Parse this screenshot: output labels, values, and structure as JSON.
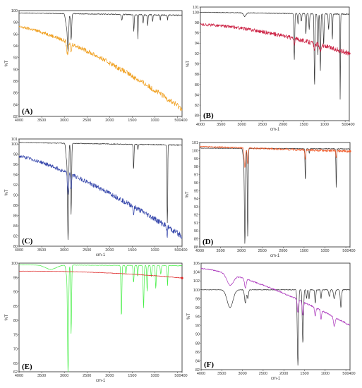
{
  "chart_data": [
    {
      "panel": "(A)",
      "type": "line",
      "x_ticks": [
        "4000",
        "3500",
        "3000",
        "2500",
        "2000",
        "1500",
        "1000",
        "500",
        "400"
      ],
      "y_ticks": [
        "100",
        "98",
        "96",
        "94",
        "92",
        "90",
        "88",
        "86",
        "84",
        "82"
      ],
      "ylabel": "%T",
      "xlabel": "",
      "xlim": [
        4000,
        400
      ],
      "ylim": [
        82,
        100
      ],
      "series": [
        {
          "color": "#333333",
          "baseline": 99.6,
          "drift": 99.2,
          "noise": 0.05,
          "peaks": [
            [
              2955,
              2,
              20
            ],
            [
              2918,
              6,
              14
            ],
            [
              2850,
              4.5,
              12
            ],
            [
              1730,
              1,
              10
            ],
            [
              1465,
              2.8,
              8
            ],
            [
              1375,
              4.2,
              6
            ],
            [
              1260,
              1.5,
              8
            ],
            [
              1160,
              1.8,
              8
            ],
            [
              1050,
              1.2,
              8
            ],
            [
              880,
              1,
              6
            ],
            [
              720,
              0.8,
              6
            ]
          ]
        },
        {
          "color": "#f0a020",
          "baseline": 97.2,
          "drift": 83.3,
          "noise": 0.25,
          "curve": 1.4,
          "peaks": [
            [
              2930,
              2,
              20
            ],
            [
              2850,
              1.5,
              12
            ]
          ]
        }
      ]
    },
    {
      "panel": "(B)",
      "type": "line",
      "x_ticks": [
        "4000",
        "3500",
        "3000",
        "2500",
        "2000",
        "1500",
        "1000",
        "500",
        "400"
      ],
      "y_ticks": [
        "101",
        "100",
        "98",
        "96",
        "94",
        "92",
        "90",
        "88",
        "86",
        "84",
        "82",
        "80"
      ],
      "ylabel": "%T",
      "xlabel": "cm-1",
      "xlim": [
        4000,
        400
      ],
      "ylim": [
        79,
        101
      ],
      "series": [
        {
          "color": "#333333",
          "baseline": 100.0,
          "drift": 99.6,
          "noise": 0.05,
          "peaks": [
            [
              2930,
              0.7,
              30
            ],
            [
              1730,
              9,
              10
            ],
            [
              1640,
              2,
              10
            ],
            [
              1560,
              1.5,
              10
            ],
            [
              1450,
              4,
              10
            ],
            [
              1370,
              3,
              10
            ],
            [
              1240,
              14,
              10
            ],
            [
              1160,
              8,
              10
            ],
            [
              1100,
              11,
              10
            ],
            [
              1020,
              6,
              10
            ],
            [
              900,
              3,
              10
            ],
            [
              810,
              5,
              8
            ],
            [
              620,
              17,
              6
            ]
          ]
        },
        {
          "color": "#cc2244",
          "baseline": 97.6,
          "drift": 92.0,
          "noise": 0.25,
          "curve": 1.6,
          "peaks": [
            [
              1730,
              1,
              15
            ],
            [
              1240,
              1.5,
              15
            ],
            [
              1100,
              1.2,
              15
            ]
          ]
        }
      ]
    },
    {
      "panel": "(C)",
      "type": "line",
      "x_ticks": [
        "4000",
        "3500",
        "3000",
        "2500",
        "2000",
        "1500",
        "1000",
        "500",
        "400"
      ],
      "y_ticks": [
        "101",
        "100",
        "98",
        "96",
        "94",
        "92",
        "90",
        "88",
        "86",
        "84",
        "82",
        "80"
      ],
      "ylabel": "%T",
      "xlabel": "cm-1",
      "xlim": [
        4000,
        400
      ],
      "ylim": [
        80,
        101
      ],
      "series": [
        {
          "color": "#333333",
          "baseline": 100.3,
          "drift": 99.8,
          "noise": 0.05,
          "peaks": [
            [
              2955,
              3,
              14
            ],
            [
              2918,
              19,
              12
            ],
            [
              2850,
              14,
              10
            ],
            [
              1470,
              5,
              8
            ],
            [
              1375,
              1,
              8
            ],
            [
              730,
              12,
              7
            ],
            [
              720,
              10,
              5
            ]
          ]
        },
        {
          "color": "#3344aa",
          "baseline": 97.6,
          "drift": 82.0,
          "noise": 0.3,
          "curve": 1.3,
          "peaks": [
            [
              2918,
              4,
              14
            ],
            [
              2850,
              3,
              10
            ],
            [
              1470,
              1.5,
              10
            ],
            [
              730,
              2,
              8
            ]
          ]
        }
      ]
    },
    {
      "panel": "(D)",
      "type": "line",
      "x_ticks": [
        "4000",
        "3500",
        "3000",
        "2500",
        "2000",
        "1500",
        "1000",
        "500",
        "400"
      ],
      "y_ticks": [
        "101",
        "100",
        "99",
        "98",
        "97",
        "96",
        "95",
        "94",
        "93",
        "92",
        "91",
        "90",
        "89",
        "88"
      ],
      "ylabel": "%T",
      "xlabel": "cm-1",
      "xlim": [
        4000,
        400
      ],
      "ylim": [
        88,
        101
      ],
      "series": [
        {
          "color": "#333333",
          "baseline": 100.3,
          "drift": 100.2,
          "noise": 0.03,
          "peaks": [
            [
              2955,
              1,
              14
            ],
            [
              2918,
              12,
              12
            ],
            [
              2850,
              11,
              10
            ],
            [
              1470,
              4,
              8
            ],
            [
              1375,
              0.6,
              8
            ],
            [
              730,
              5,
              7
            ]
          ]
        },
        {
          "color": "#f06030",
          "baseline": 100.5,
          "drift": 99.9,
          "noise": 0.08,
          "peaks": [
            [
              2918,
              2.5,
              16
            ],
            [
              2850,
              2,
              12
            ],
            [
              1470,
              1.2,
              10
            ],
            [
              730,
              1,
              8
            ]
          ]
        }
      ]
    },
    {
      "panel": "(E)",
      "type": "line",
      "x_ticks": [
        "4000",
        "3500",
        "3000",
        "2500",
        "2000",
        "1500",
        "1000",
        "500",
        "400"
      ],
      "y_ticks": [
        "100",
        "95",
        "90",
        "85",
        "80",
        "75",
        "70",
        "65",
        "62"
      ],
      "ylabel": "%T",
      "xlabel": "cm-1",
      "xlim": [
        4000,
        400
      ],
      "ylim": [
        62,
        100
      ],
      "series": [
        {
          "color": "#44ee44",
          "baseline": 99.4,
          "drift": 99.1,
          "noise": 0.05,
          "peaks": [
            [
              3300,
              1.5,
              120
            ],
            [
              2955,
              3,
              14
            ],
            [
              2918,
              38,
              12
            ],
            [
              2850,
              24,
              10
            ],
            [
              1740,
              18,
              10
            ],
            [
              1640,
              3,
              10
            ],
            [
              1470,
              6,
              10
            ],
            [
              1380,
              4,
              8
            ],
            [
              1250,
              15,
              10
            ],
            [
              1170,
              9,
              10
            ],
            [
              1080,
              4,
              10
            ],
            [
              980,
              8,
              10
            ],
            [
              870,
              3,
              10
            ],
            [
              720,
              7,
              8
            ]
          ]
        },
        {
          "color": "#dd2222",
          "baseline": 97.2,
          "drift": 94.8,
          "noise": 0.05,
          "curve": 2.2,
          "peaks": []
        }
      ]
    },
    {
      "panel": "(F)",
      "type": "line",
      "x_ticks": [
        "4000",
        "3500",
        "3000",
        "2500",
        "2000",
        "1500",
        "1000",
        "500",
        "400"
      ],
      "y_ticks": [
        "106",
        "104",
        "102",
        "100",
        "98",
        "96",
        "94",
        "92",
        "90",
        "88",
        "86",
        "84",
        "82"
      ],
      "ylabel": "%T",
      "xlabel": "cm-1",
      "xlim": [
        4000,
        400
      ],
      "ylim": [
        82,
        106
      ],
      "series": [
        {
          "color": "#333333",
          "baseline": 100.0,
          "drift": 100.0,
          "noise": 0.05,
          "peaks": [
            [
              3300,
              4,
              70
            ],
            [
              2930,
              3,
              20
            ],
            [
              2870,
              2,
              15
            ],
            [
              1660,
              17,
              15
            ],
            [
              1540,
              12,
              15
            ],
            [
              1450,
              2,
              10
            ],
            [
              1390,
              2,
              10
            ],
            [
              1240,
              3,
              12
            ],
            [
              1100,
              2,
              10
            ],
            [
              900,
              1.5,
              15
            ],
            [
              780,
              2,
              20
            ],
            [
              620,
              4,
              15
            ]
          ]
        },
        {
          "color": "#aa33bb",
          "baseline": 104.8,
          "drift": 92.0,
          "noise": 0.1,
          "curve": 1.4,
          "peaks": [
            [
              3300,
              2.5,
              80
            ],
            [
              2930,
              2,
              20
            ],
            [
              1660,
              3,
              15
            ],
            [
              1540,
              3,
              15
            ],
            [
              1240,
              2,
              15
            ],
            [
              1100,
              2,
              12
            ],
            [
              780,
              2,
              20
            ]
          ]
        }
      ]
    }
  ]
}
